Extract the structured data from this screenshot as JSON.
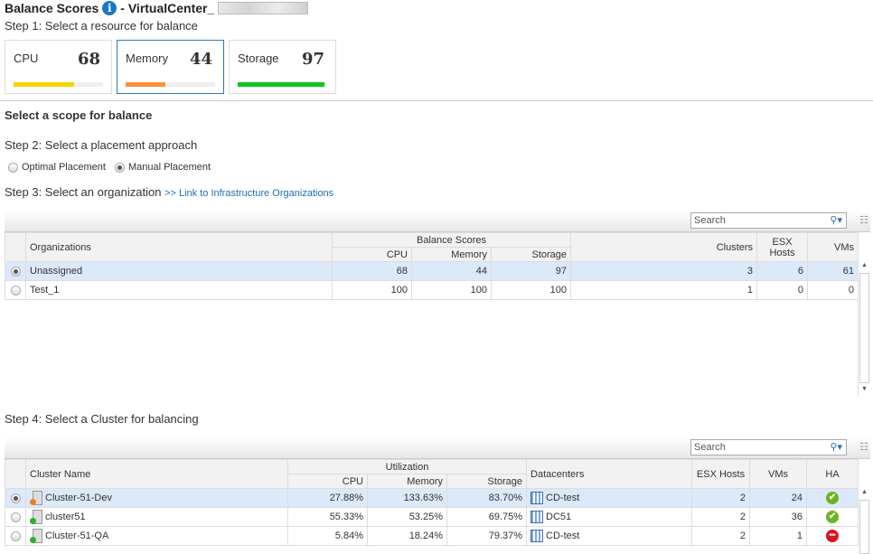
{
  "header": {
    "title": "Balance Scores",
    "separator": "- VirtualCenter_",
    "info_icon": "info-icon"
  },
  "step1": "Step 1: Select a resource for balance",
  "resources": [
    {
      "label": "CPU",
      "value": "68",
      "score": 68,
      "color": "#f5d400",
      "selected": false
    },
    {
      "label": "Memory",
      "value": "44",
      "score": 44,
      "color": "#f7923a",
      "selected": true
    },
    {
      "label": "Storage",
      "value": "97",
      "score": 97,
      "color": "#11c620",
      "selected": false
    }
  ],
  "scope_title": "Select a scope for balance",
  "step2": "Step 2: Select a placement approach",
  "placement": {
    "optimal": "Optimal Placement",
    "manual": "Manual Placement",
    "selected": "manual"
  },
  "step3": "Step 3: Select an organization",
  "org_link": ">> Link to Infrastructure Organizations",
  "search_placeholder": "Search",
  "org_table": {
    "headers": {
      "org": "Organizations",
      "group": "Balance Scores",
      "cpu": "CPU",
      "memory": "Memory",
      "storage": "Storage",
      "clusters": "Clusters",
      "esx": "ESX Hosts",
      "vms": "VMs"
    },
    "rows": [
      {
        "name": "Unassigned",
        "cpu": "68",
        "memory": "44",
        "storage": "97",
        "clusters": "3",
        "esx": "6",
        "vms": "61",
        "selected": true
      },
      {
        "name": "Test_1",
        "cpu": "100",
        "memory": "100",
        "storage": "100",
        "clusters": "1",
        "esx": "0",
        "vms": "0",
        "selected": false
      }
    ]
  },
  "step4": "Step 4: Select a Cluster for balancing",
  "cluster_table": {
    "headers": {
      "name": "Cluster Name",
      "group": "Utilization",
      "cpu": "CPU",
      "memory": "Memory",
      "storage": "Storage",
      "dc": "Datacenters",
      "esx": "ESX Hosts",
      "vms": "VMs",
      "ha": "HA"
    },
    "rows": [
      {
        "name": "Cluster-51-Dev",
        "status_color": "#f07d1a",
        "cpu": "27.88%",
        "memory": "133.63%",
        "storage": "83.70%",
        "dc": "CD-test",
        "esx": "2",
        "vms": "24",
        "ha": "ok",
        "selected": true
      },
      {
        "name": "cluster51",
        "status_color": "#28b22c",
        "cpu": "55.33%",
        "memory": "53.25%",
        "storage": "69.75%",
        "dc": "DC51",
        "esx": "2",
        "vms": "36",
        "ha": "ok",
        "selected": false
      },
      {
        "name": "Cluster-51-QA",
        "status_color": "#28b22c",
        "cpu": "5.84%",
        "memory": "18.24%",
        "storage": "79.37%",
        "dc": "CD-test",
        "esx": "2",
        "vms": "1",
        "ha": "error",
        "selected": false
      }
    ]
  }
}
